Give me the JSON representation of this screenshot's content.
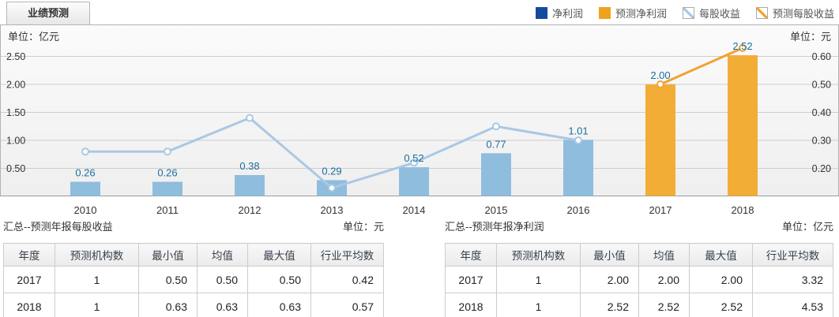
{
  "tab": {
    "label": "业绩预测"
  },
  "legend": {
    "items": [
      {
        "key": "net-profit",
        "label": "净利润",
        "type": "bar",
        "color": "#154a9e"
      },
      {
        "key": "forecast-net-profit",
        "label": "预测净利润",
        "type": "bar",
        "color": "#efa31d"
      },
      {
        "key": "eps",
        "label": "每股收益",
        "type": "line",
        "color": "#a9c8e4"
      },
      {
        "key": "forecast-eps",
        "label": "预测每股收益",
        "type": "line",
        "color": "#f0a233"
      }
    ]
  },
  "chart_data": {
    "type": "combo-bar-line",
    "categories": [
      "2010",
      "2011",
      "2012",
      "2013",
      "2014",
      "2015",
      "2016",
      "2017",
      "2018"
    ],
    "left_axis": {
      "unit_label": "单位：亿元",
      "ticks": [
        "0.50",
        "1.00",
        "1.50",
        "2.00",
        "2.50"
      ],
      "range": [
        0,
        3.05
      ]
    },
    "right_axis": {
      "unit_label": "单位：元",
      "ticks": [
        "0.20",
        "0.30",
        "0.40",
        "0.50",
        "0.60"
      ],
      "range": [
        0.1,
        0.71
      ]
    },
    "grid": true,
    "legend_position": "top-right",
    "series": [
      {
        "name": "净利润",
        "type": "bar",
        "axis": "left",
        "color": "#8fbddd",
        "values": [
          0.26,
          0.26,
          0.38,
          0.29,
          0.52,
          0.77,
          1.01,
          null,
          null
        ],
        "labels_shown": true
      },
      {
        "name": "预测净利润",
        "type": "bar",
        "axis": "left",
        "color": "#f2ad37",
        "values": [
          null,
          null,
          null,
          null,
          null,
          null,
          null,
          2.0,
          2.52
        ],
        "labels_shown": true
      },
      {
        "name": "每股收益",
        "type": "line",
        "axis": "right",
        "color": "#a9c8e4",
        "values": [
          0.26,
          0.26,
          0.38,
          0.13,
          0.22,
          0.35,
          0.3,
          null,
          null
        ],
        "labels_shown": false
      },
      {
        "name": "预测每股收益",
        "type": "line",
        "axis": "right",
        "color": "#f0a233",
        "values": [
          null,
          null,
          null,
          null,
          null,
          null,
          null,
          0.5,
          0.63
        ],
        "labels_shown": false
      }
    ],
    "bar_value_labels": [
      "0.26",
      "0.26",
      "0.38",
      "0.29",
      "0.52",
      "0.77",
      "1.01",
      "2.00",
      "2.52"
    ],
    "value_label_color": "#1b6f9e"
  },
  "tables": [
    {
      "title": "汇总--预测年报每股收益",
      "unit": "单位：元",
      "columns": [
        "年度",
        "预测机构数",
        "最小值",
        "均值",
        "最大值",
        "行业平均数"
      ],
      "rows": [
        [
          "2017",
          "1",
          "0.50",
          "0.50",
          "0.50",
          "0.42"
        ],
        [
          "2018",
          "1",
          "0.63",
          "0.63",
          "0.63",
          "0.57"
        ]
      ]
    },
    {
      "title": "汇总--预测年报净利润",
      "unit": "单位：亿元",
      "columns": [
        "年度",
        "预测机构数",
        "最小值",
        "均值",
        "最大值",
        "行业平均数"
      ],
      "rows": [
        [
          "2017",
          "1",
          "2.00",
          "2.00",
          "2.00",
          "3.32"
        ],
        [
          "2018",
          "1",
          "2.52",
          "2.52",
          "2.52",
          "4.53"
        ]
      ]
    }
  ]
}
